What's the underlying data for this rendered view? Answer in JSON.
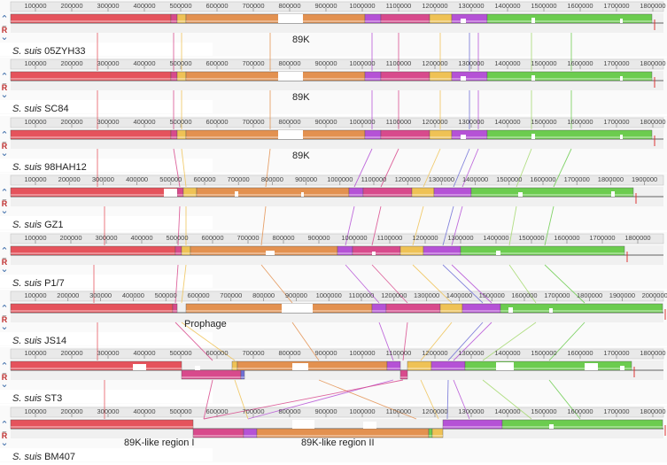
{
  "ticks": [
    "100000",
    "200000",
    "300000",
    "400000",
    "500000",
    "600000",
    "700000",
    "800000",
    "900000",
    "1000000",
    "1100000",
    "1200000",
    "1300000",
    "1400000",
    "1500000",
    "1600000",
    "1700000",
    "1800000",
    "1900000",
    "2000000",
    "2100000"
  ],
  "colors": {
    "red": "#e5535c",
    "pink": "#d84a8c",
    "yellow": "#efc255",
    "orange": "#e39150",
    "purple": "#b552d6",
    "green": "#6ccc4f",
    "lightgreen": "#a4d96e",
    "blue": "#6f6fd6",
    "white": "#ffffff",
    "ruler": "#c8c8c8",
    "track": "#f0f0f0"
  },
  "controls": {
    "up": "⌃",
    "reset": "R",
    "minus": "–",
    "down": "⌄"
  },
  "genomes": [
    {
      "species": "S. suis",
      "strain": "05ZYH33",
      "annotation": "89K"
    },
    {
      "species": "S. suis",
      "strain": "SC84",
      "annotation": "89K"
    },
    {
      "species": "S. suis",
      "strain": "98HAH12",
      "annotation": "89K"
    },
    {
      "species": "S. suis",
      "strain": "GZ1",
      "annotation": ""
    },
    {
      "species": "S. suis",
      "strain": "P1/7",
      "annotation": ""
    },
    {
      "species": "S. suis",
      "strain": "JS14",
      "annotation": "Prophage"
    },
    {
      "species": "S. suis",
      "strain": "ST3",
      "annotation": ""
    },
    {
      "species": "S. suis",
      "strain": "BM407",
      "annotation": ""
    }
  ],
  "bottom_annotations": [
    "89K-like region I",
    "89K-like region II"
  ]
}
